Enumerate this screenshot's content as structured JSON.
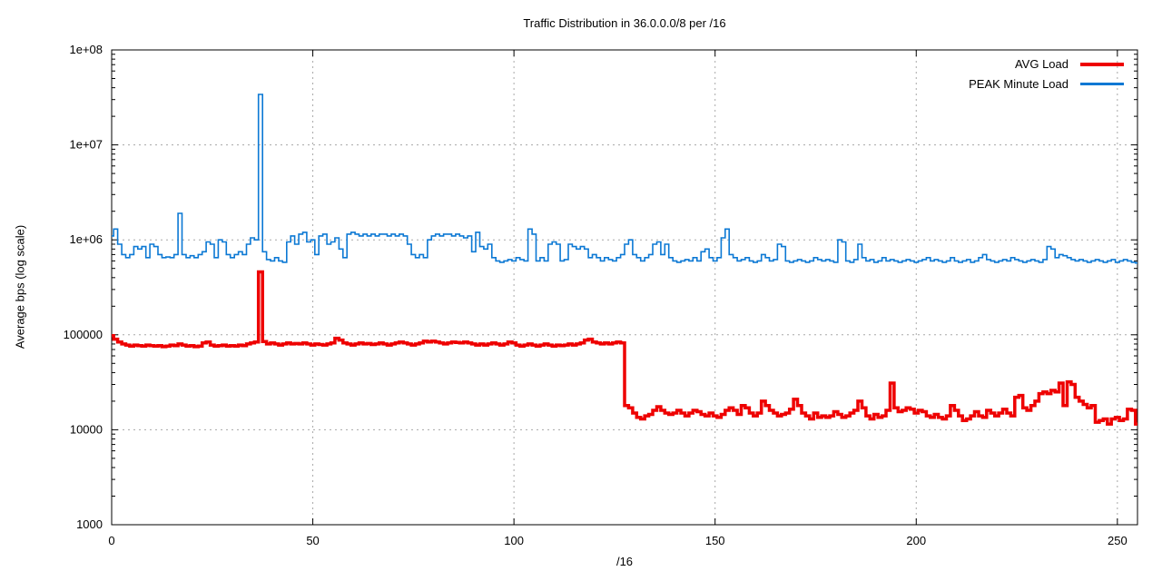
{
  "chart_data": {
    "type": "step-line",
    "title": "Traffic Distribution in 36.0.0.0/8 per /16",
    "xlabel": "/16",
    "ylabel": "Average bps (log scale)",
    "y_scale": "log10",
    "y_range": [
      1000,
      100000000
    ],
    "x_range": [
      0,
      255
    ],
    "x_step": 1,
    "grid": true,
    "legend_position": "top-right-inside",
    "grid_color": "#a8a8a8",
    "axis_color": "#000000",
    "text_color": "#000000",
    "x_ticks": [
      0,
      50,
      100,
      150,
      200,
      250
    ],
    "y_ticks": [
      {
        "value": 100000000,
        "label": "1e+08"
      },
      {
        "value": 10000000,
        "label": "1e+07"
      },
      {
        "value": 1000000,
        "label": "1e+06"
      },
      {
        "value": 100000,
        "label": "100000"
      },
      {
        "value": 10000,
        "label": "10000"
      },
      {
        "value": 1000,
        "label": "1000"
      }
    ],
    "series": [
      {
        "name": "AVG Load",
        "color": "#ee0000",
        "line_width": 3.5,
        "values": [
          98000,
          90000,
          84000,
          80000,
          78000,
          76000,
          78000,
          77000,
          76000,
          78000,
          77000,
          76000,
          77000,
          75000,
          76000,
          78000,
          77000,
          80000,
          78000,
          76000,
          77000,
          75000,
          76000,
          82000,
          84000,
          78000,
          76000,
          77000,
          78000,
          76000,
          77000,
          76000,
          78000,
          77000,
          80000,
          82000,
          84000,
          460000,
          85000,
          80000,
          82000,
          80000,
          78000,
          80000,
          82000,
          80000,
          81000,
          80000,
          82000,
          80000,
          78000,
          80000,
          79000,
          78000,
          80000,
          82000,
          92000,
          88000,
          82000,
          80000,
          78000,
          80000,
          82000,
          80000,
          81000,
          79000,
          80000,
          82000,
          80000,
          78000,
          80000,
          82000,
          84000,
          82000,
          80000,
          78000,
          80000,
          82000,
          86000,
          84000,
          86000,
          84000,
          82000,
          80000,
          82000,
          84000,
          83000,
          82000,
          84000,
          82000,
          80000,
          78000,
          80000,
          78000,
          80000,
          82000,
          80000,
          78000,
          80000,
          84000,
          82000,
          78000,
          76000,
          78000,
          80000,
          78000,
          76000,
          78000,
          80000,
          78000,
          76000,
          78000,
          77000,
          78000,
          80000,
          78000,
          80000,
          82000,
          88000,
          90000,
          84000,
          82000,
          80000,
          82000,
          80000,
          82000,
          84000,
          82000,
          18000,
          17000,
          15000,
          13500,
          13000,
          14000,
          14500,
          16000,
          17500,
          16000,
          15000,
          14500,
          15000,
          16000,
          15000,
          14000,
          15000,
          16000,
          15500,
          14500,
          14000,
          15000,
          14000,
          13500,
          14500,
          16000,
          17000,
          16000,
          14500,
          18000,
          17000,
          15000,
          14000,
          15000,
          20000,
          18000,
          16000,
          15000,
          14000,
          14500,
          15000,
          16500,
          21000,
          18000,
          15000,
          14000,
          13000,
          15000,
          13500,
          14000,
          13500,
          14000,
          15500,
          14500,
          13500,
          14000,
          15000,
          16000,
          20000,
          17000,
          14000,
          13000,
          14500,
          13500,
          14000,
          16000,
          31000,
          17000,
          15500,
          16000,
          17000,
          16500,
          15000,
          16000,
          15500,
          14000,
          13500,
          14500,
          13500,
          13000,
          14000,
          18000,
          16000,
          14000,
          12500,
          13000,
          14000,
          15500,
          14000,
          13500,
          16000,
          15000,
          14000,
          15000,
          16500,
          15000,
          14000,
          22000,
          23000,
          17000,
          16000,
          18000,
          20000,
          24000,
          25000,
          24000,
          26000,
          25000,
          31000,
          18000,
          32000,
          30000,
          22000,
          20000,
          18500,
          17000,
          18000,
          12000,
          12500,
          13000,
          11500,
          13000,
          13500,
          12500,
          13000,
          16500,
          16000,
          11500
        ]
      },
      {
        "name": "PEAK Minute Load",
        "color": "#0b78d4",
        "line_width": 1.6,
        "values": [
          1100000,
          1300000,
          900000,
          700000,
          650000,
          700000,
          850000,
          800000,
          850000,
          650000,
          900000,
          850000,
          700000,
          650000,
          660000,
          650000,
          700000,
          1900000,
          700000,
          650000,
          680000,
          650000,
          700000,
          750000,
          950000,
          900000,
          650000,
          1000000,
          950000,
          700000,
          650000,
          700000,
          750000,
          700000,
          900000,
          1050000,
          1000000,
          34000000,
          750000,
          620000,
          600000,
          650000,
          600000,
          580000,
          950000,
          1100000,
          900000,
          1150000,
          1200000,
          950000,
          1000000,
          700000,
          1100000,
          1150000,
          900000,
          950000,
          1050000,
          800000,
          650000,
          1150000,
          1200000,
          1150000,
          1100000,
          1150000,
          1100000,
          1150000,
          1100000,
          1150000,
          1150000,
          1100000,
          1150000,
          1100000,
          1150000,
          1100000,
          900000,
          700000,
          650000,
          700000,
          650000,
          1000000,
          1100000,
          1150000,
          1100000,
          1150000,
          1150000,
          1100000,
          1150000,
          1100000,
          1050000,
          1100000,
          750000,
          1200000,
          850000,
          800000,
          900000,
          650000,
          600000,
          580000,
          600000,
          620000,
          600000,
          650000,
          620000,
          600000,
          1300000,
          1150000,
          600000,
          650000,
          600000,
          900000,
          950000,
          900000,
          600000,
          620000,
          900000,
          850000,
          800000,
          850000,
          800000,
          650000,
          700000,
          650000,
          600000,
          650000,
          620000,
          600000,
          650000,
          700000,
          900000,
          1000000,
          700000,
          650000,
          600000,
          650000,
          700000,
          900000,
          950000,
          700000,
          900000,
          650000,
          600000,
          580000,
          600000,
          620000,
          600000,
          650000,
          600000,
          750000,
          800000,
          650000,
          600000,
          650000,
          1050000,
          1300000,
          700000,
          650000,
          600000,
          620000,
          650000,
          600000,
          580000,
          600000,
          700000,
          650000,
          600000,
          620000,
          900000,
          850000,
          600000,
          580000,
          600000,
          620000,
          600000,
          580000,
          600000,
          650000,
          620000,
          600000,
          620000,
          600000,
          580000,
          1000000,
          950000,
          600000,
          580000,
          620000,
          900000,
          650000,
          600000,
          620000,
          580000,
          600000,
          650000,
          600000,
          620000,
          600000,
          580000,
          600000,
          620000,
          600000,
          580000,
          600000,
          620000,
          650000,
          600000,
          620000,
          600000,
          580000,
          600000,
          650000,
          600000,
          580000,
          600000,
          620000,
          580000,
          600000,
          650000,
          700000,
          620000,
          600000,
          580000,
          600000,
          620000,
          600000,
          650000,
          620000,
          600000,
          580000,
          600000,
          620000,
          600000,
          580000,
          620000,
          850000,
          800000,
          650000,
          700000,
          680000,
          650000,
          620000,
          600000,
          620000,
          600000,
          580000,
          600000,
          620000,
          600000,
          580000,
          600000,
          620000,
          580000,
          600000,
          620000,
          600000,
          580000,
          570000
        ]
      }
    ]
  }
}
